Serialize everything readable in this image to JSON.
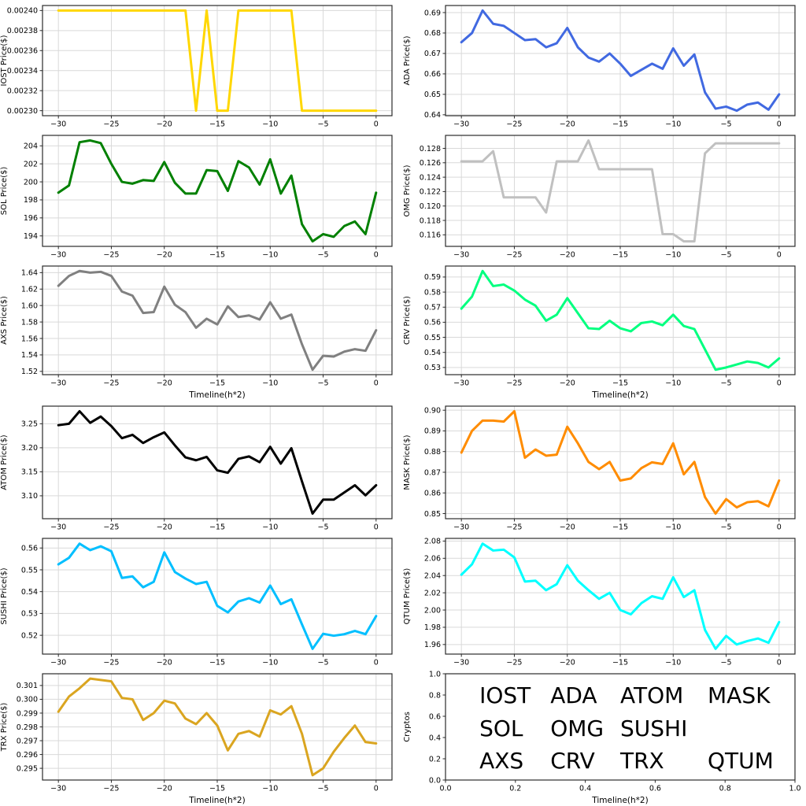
{
  "figure": {
    "background": "#ffffff",
    "grid_color": "#d9d9d9",
    "axis_color": "#2b2b2b",
    "x_axis_title": "Timeline(h*2)"
  },
  "chart_data": [
    {
      "type": "line",
      "name": "IOST",
      "ylabel": "IOST Price($)",
      "color": "#FFD700",
      "x_start": -30,
      "xticks": [
        -30,
        -25,
        -20,
        -15,
        -10,
        -5,
        0
      ],
      "xdec": 0,
      "grid": true,
      "yticks": [
        0.0023,
        0.00232,
        0.00234,
        0.00236,
        0.00238,
        0.0024
      ],
      "ydec": 5,
      "values": [
        0.0024,
        0.0024,
        0.0024,
        0.0024,
        0.0024,
        0.0024,
        0.0024,
        0.0024,
        0.0024,
        0.0024,
        0.0024,
        0.0024,
        0.0024,
        0.0023,
        0.0024,
        0.0023,
        0.0023,
        0.0024,
        0.0024,
        0.0024,
        0.0024,
        0.0024,
        0.0024,
        0.0023,
        0.0023,
        0.0023,
        0.0023,
        0.0023,
        0.0023,
        0.0023,
        0.0023
      ]
    },
    {
      "type": "line",
      "name": "ADA",
      "ylabel": "ADA Price($)",
      "color": "#4169E1",
      "x_start": -30,
      "xticks": [
        -30,
        -25,
        -20,
        -15,
        -10,
        -5,
        0
      ],
      "xdec": 0,
      "grid": true,
      "yticks": [
        0.64,
        0.65,
        0.66,
        0.67,
        0.68,
        0.69
      ],
      "ydec": 2,
      "values": [
        0.6755,
        0.68,
        0.691,
        0.6845,
        0.6835,
        0.68,
        0.6765,
        0.677,
        0.673,
        0.675,
        0.6825,
        0.673,
        0.668,
        0.666,
        0.67,
        0.665,
        0.659,
        0.662,
        0.665,
        0.6625,
        0.6725,
        0.664,
        0.6695,
        0.651,
        0.643,
        0.644,
        0.642,
        0.645,
        0.646,
        0.6425,
        0.65
      ]
    },
    {
      "type": "line",
      "name": "SOL",
      "ylabel": "SOL Price($)",
      "color": "#008000",
      "x_start": -30,
      "xticks": [
        -30,
        -25,
        -20,
        -15,
        -10,
        -5,
        0
      ],
      "xdec": 0,
      "grid": true,
      "yticks": [
        194,
        196,
        198,
        200,
        202,
        204
      ],
      "ydec": 0,
      "values": [
        198.8,
        199.6,
        204.4,
        204.6,
        204.3,
        202.0,
        200.0,
        199.8,
        200.2,
        200.1,
        202.2,
        199.9,
        198.7,
        198.7,
        201.3,
        201.2,
        199.0,
        202.3,
        201.6,
        199.7,
        202.5,
        198.7,
        200.7,
        195.3,
        193.4,
        194.2,
        193.9,
        195.1,
        195.6,
        194.2,
        198.8
      ]
    },
    {
      "type": "line",
      "name": "OMG",
      "ylabel": "OMG Price($)",
      "color": "#C0C0C0",
      "x_start": -30,
      "xticks": [
        -30,
        -25,
        -20,
        -15,
        -10,
        -5,
        0
      ],
      "xdec": 0,
      "grid": true,
      "yticks": [
        0.116,
        0.118,
        0.12,
        0.122,
        0.124,
        0.126,
        0.128
      ],
      "ydec": 3,
      "values": [
        0.1262,
        0.1262,
        0.1262,
        0.1276,
        0.1212,
        0.1212,
        0.1212,
        0.1212,
        0.1191,
        0.1262,
        0.1262,
        0.1262,
        0.1291,
        0.1251,
        0.1251,
        0.1251,
        0.1251,
        0.1251,
        0.1251,
        0.1161,
        0.1161,
        0.1151,
        0.1151,
        0.1273,
        0.1287,
        0.1287,
        0.1287,
        0.1287,
        0.1287,
        0.1287,
        0.1287
      ]
    },
    {
      "type": "line",
      "name": "AXS",
      "ylabel": "AXS Price($)",
      "color": "#808080",
      "x_start": -30,
      "xticks": [
        -30,
        -25,
        -20,
        -15,
        -10,
        -5,
        0
      ],
      "xdec": 0,
      "grid": true,
      "xlabel": "Timeline(h*2)",
      "yticks": [
        1.52,
        1.54,
        1.56,
        1.58,
        1.6,
        1.62,
        1.64
      ],
      "ydec": 2,
      "values": [
        1.624,
        1.636,
        1.642,
        1.64,
        1.641,
        1.636,
        1.617,
        1.612,
        1.591,
        1.592,
        1.623,
        1.601,
        1.592,
        1.573,
        1.584,
        1.577,
        1.599,
        1.586,
        1.588,
        1.583,
        1.604,
        1.584,
        1.589,
        1.553,
        1.522,
        1.539,
        1.538,
        1.544,
        1.547,
        1.545,
        1.57
      ]
    },
    {
      "type": "line",
      "name": "CRV",
      "ylabel": "CRV Price($)",
      "color": "#00FF7F",
      "x_start": -30,
      "xticks": [
        -30,
        -25,
        -20,
        -15,
        -10,
        -5,
        0
      ],
      "xdec": 0,
      "grid": true,
      "xlabel": "Timeline(h*2)",
      "yticks": [
        0.53,
        0.54,
        0.55,
        0.56,
        0.57,
        0.58,
        0.59
      ],
      "ydec": 2,
      "values": [
        0.569,
        0.577,
        0.594,
        0.584,
        0.585,
        0.581,
        0.575,
        0.571,
        0.561,
        0.565,
        0.576,
        0.566,
        0.556,
        0.5555,
        0.561,
        0.556,
        0.554,
        0.5595,
        0.5605,
        0.558,
        0.565,
        0.5575,
        0.5555,
        0.542,
        0.5285,
        0.53,
        0.532,
        0.534,
        0.533,
        0.53,
        0.536
      ]
    },
    {
      "type": "line",
      "name": "ATOM",
      "ylabel": "ATOM Price($)",
      "color": "#000000",
      "x_start": -30,
      "xticks": [
        -30,
        -25,
        -20,
        -15,
        -10,
        -5,
        0
      ],
      "xdec": 0,
      "grid": true,
      "yticks": [
        3.1,
        3.15,
        3.2,
        3.25
      ],
      "ydec": 2,
      "values": [
        3.247,
        3.25,
        3.276,
        3.252,
        3.265,
        3.245,
        3.22,
        3.227,
        3.21,
        3.222,
        3.232,
        3.205,
        3.18,
        3.174,
        3.181,
        3.153,
        3.148,
        3.177,
        3.182,
        3.17,
        3.202,
        3.167,
        3.199,
        3.13,
        3.063,
        3.092,
        3.092,
        3.107,
        3.122,
        3.101,
        3.122
      ]
    },
    {
      "type": "line",
      "name": "MASK",
      "ylabel": "MASK Price($)",
      "color": "#FF8C00",
      "x_start": -30,
      "xticks": [
        -30,
        -25,
        -20,
        -15,
        -10,
        -5,
        0
      ],
      "xdec": 0,
      "grid": true,
      "yticks": [
        0.85,
        0.86,
        0.87,
        0.88,
        0.89,
        0.9
      ],
      "ydec": 2,
      "values": [
        0.8795,
        0.89,
        0.895,
        0.895,
        0.8945,
        0.8995,
        0.877,
        0.881,
        0.878,
        0.8785,
        0.892,
        0.884,
        0.875,
        0.8715,
        0.875,
        0.866,
        0.867,
        0.872,
        0.8748,
        0.874,
        0.884,
        0.869,
        0.875,
        0.858,
        0.85,
        0.857,
        0.853,
        0.8555,
        0.856,
        0.8535,
        0.866
      ]
    },
    {
      "type": "line",
      "name": "SUSHI",
      "ylabel": "SUSHI Price($)",
      "color": "#00BFFF",
      "x_start": -30,
      "xticks": [
        -30,
        -25,
        -20,
        -15,
        -10,
        -5,
        0
      ],
      "xdec": 0,
      "grid": true,
      "yticks": [
        0.52,
        0.53,
        0.54,
        0.55,
        0.56
      ],
      "ydec": 2,
      "values": [
        0.5525,
        0.5555,
        0.562,
        0.559,
        0.5608,
        0.5585,
        0.5463,
        0.547,
        0.542,
        0.5445,
        0.558,
        0.549,
        0.546,
        0.5435,
        0.5445,
        0.5335,
        0.5305,
        0.5355,
        0.537,
        0.535,
        0.5428,
        0.5343,
        0.5365,
        0.525,
        0.5138,
        0.5207,
        0.5198,
        0.5205,
        0.522,
        0.5205,
        0.5288
      ]
    },
    {
      "type": "line",
      "name": "QTUM",
      "ylabel": "QTUM Price($)",
      "color": "#00FFFF",
      "x_start": -30,
      "xticks": [
        -30,
        -25,
        -20,
        -15,
        -10,
        -5,
        0
      ],
      "xdec": 0,
      "grid": true,
      "yticks": [
        1.96,
        1.98,
        2.0,
        2.02,
        2.04,
        2.06,
        2.08
      ],
      "ydec": 2,
      "values": [
        2.041,
        2.053,
        2.077,
        2.069,
        2.07,
        2.061,
        2.033,
        2.034,
        2.023,
        2.03,
        2.052,
        2.034,
        2.023,
        2.013,
        2.02,
        2.0,
        1.995,
        2.008,
        2.016,
        2.013,
        2.038,
        2.015,
        2.023,
        1.977,
        1.955,
        1.97,
        1.96,
        1.964,
        1.967,
        1.962,
        1.986
      ]
    },
    {
      "type": "line",
      "name": "TRX",
      "ylabel": "TRX Price($)",
      "color": "#DAA520",
      "x_start": -30,
      "xticks": [
        -30,
        -25,
        -20,
        -15,
        -10,
        -5,
        0
      ],
      "xdec": 0,
      "grid": true,
      "xlabel": "Timeline(h*2)",
      "yticks": [
        0.295,
        0.296,
        0.297,
        0.298,
        0.299,
        0.3,
        0.301
      ],
      "ydec": 3,
      "values": [
        0.2991,
        0.3002,
        0.3008,
        0.3015,
        0.3014,
        0.3013,
        0.3001,
        0.3,
        0.2985,
        0.299,
        0.2999,
        0.2997,
        0.2986,
        0.2982,
        0.299,
        0.2981,
        0.2963,
        0.2975,
        0.2977,
        0.2973,
        0.2992,
        0.2989,
        0.2995,
        0.2975,
        0.2945,
        0.295,
        0.2962,
        0.2972,
        0.2981,
        0.2969,
        0.2968
      ]
    },
    {
      "type": "legend_panel",
      "name": "Cryptos",
      "ylabel": "Cryptos",
      "xlabel": "Timeline(h*2)",
      "xticks": [
        0.0,
        0.2,
        0.4,
        0.6,
        0.8,
        1.0
      ],
      "xdec": 1,
      "yticks": [
        0.0,
        0.2,
        0.4,
        0.6,
        0.8,
        1.0
      ],
      "ydec": 1,
      "grid": false,
      "words": [
        {
          "label": "IOST",
          "color": "#FFD700",
          "x": 0.097,
          "y": 0.785
        },
        {
          "label": "ADA",
          "color": "#4169E1",
          "x": 0.3,
          "y": 0.785
        },
        {
          "label": "ATOM",
          "color": "#000000",
          "x": 0.5,
          "y": 0.785
        },
        {
          "label": "MASK",
          "color": "#FF8C00",
          "x": 0.75,
          "y": 0.785
        },
        {
          "label": "SOL",
          "color": "#008000",
          "x": 0.097,
          "y": 0.475
        },
        {
          "label": "OMG",
          "color": "#C0C0C0",
          "x": 0.3,
          "y": 0.475
        },
        {
          "label": "SUSHI",
          "color": "#00BFFF",
          "x": 0.5,
          "y": 0.475
        },
        {
          "label": "AXS",
          "color": "#808080",
          "x": 0.097,
          "y": 0.17
        },
        {
          "label": "CRV",
          "color": "#00FF7F",
          "x": 0.3,
          "y": 0.17
        },
        {
          "label": "TRX",
          "color": "#DAA520",
          "x": 0.5,
          "y": 0.17
        },
        {
          "label": "QTUM",
          "color": "#00FFFF",
          "x": 0.75,
          "y": 0.17
        }
      ]
    }
  ]
}
